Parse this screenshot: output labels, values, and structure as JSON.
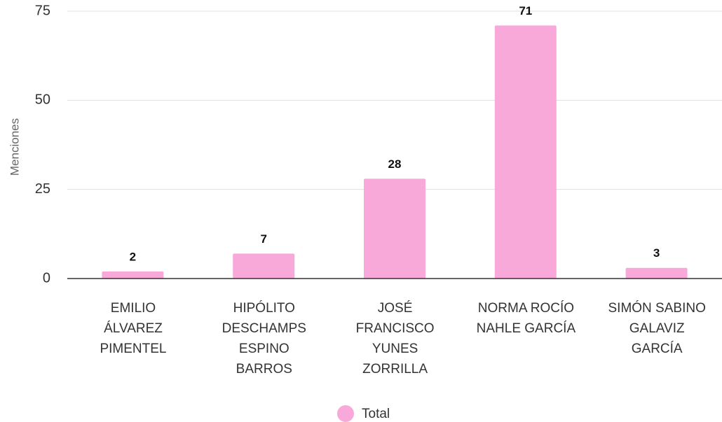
{
  "chart_data": {
    "type": "bar",
    "y_label": "Menciones",
    "categories": [
      "EMILIO\nÁLVAREZ\nPIMENTEL",
      "HIPÓLITO\nDESCHAMPS\nESPINO\nBARROS",
      "JOSÉ\nFRANCISCO\nYUNES\nZORRILLA",
      "NORMA ROCÍO\nNAHLE GARCÍA",
      "SIMÓN SABINO\nGALAVIZ\nGARCÍA"
    ],
    "series": [
      {
        "name": "Total",
        "color": "#f8a9da",
        "values": [
          2,
          7,
          28,
          71,
          3
        ]
      }
    ],
    "ylim": [
      0,
      75
    ],
    "yticks": [
      0,
      25,
      50,
      75
    ],
    "grid": true,
    "legend": "bottom"
  }
}
